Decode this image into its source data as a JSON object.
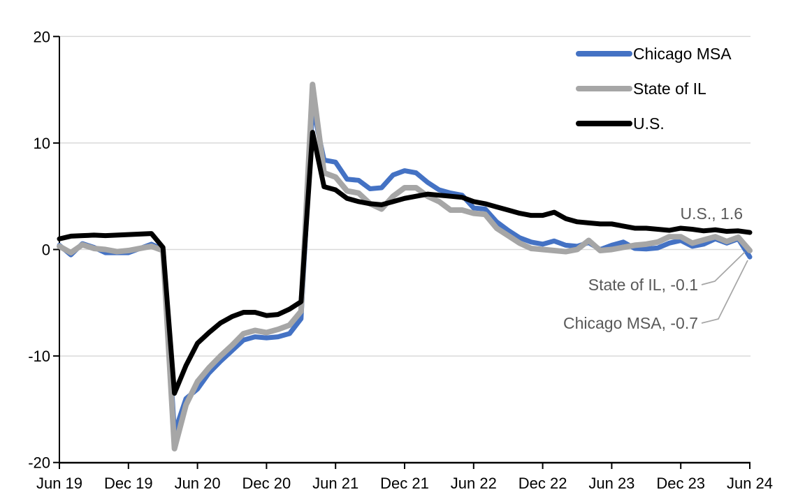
{
  "colors": {
    "chicago_msa": "#4472C4",
    "state_of_il": "#A6A6A6",
    "us": "#000000",
    "gridline": "#D9D9D9",
    "axis": "#000000",
    "annotation_text": "#595959",
    "leader_line": "#A6A6A6",
    "background": "#FFFFFF"
  },
  "legend": {
    "position": "top-right",
    "items": [
      {
        "label": "Chicago MSA",
        "color": "#4472C4"
      },
      {
        "label": "State of IL",
        "color": "#A6A6A6"
      },
      {
        "label": "U.S.",
        "color": "#000000"
      }
    ]
  },
  "annotations": {
    "us": {
      "text": "U.S., 1.6",
      "value": 1.6
    },
    "il": {
      "text": "State of IL, -0.1",
      "value": -0.1
    },
    "chicago": {
      "text": "Chicago MSA, -0.7",
      "value": -0.7
    }
  },
  "chart_data": {
    "type": "line",
    "title": "",
    "xlabel": "",
    "ylabel": "",
    "ylim": [
      -20,
      20
    ],
    "grid": true,
    "legend_position": "top-right",
    "y_ticks": [
      20,
      10,
      0,
      -10,
      -20
    ],
    "x_tick_labels": [
      "Jun 19",
      "Dec 19",
      "Jun 20",
      "Dec 20",
      "Jun 21",
      "Dec 21",
      "Jun 22",
      "Dec 22",
      "Jun 23",
      "Dec 23",
      "Jun 24"
    ],
    "x": [
      "Jun 19",
      "Jul 19",
      "Aug 19",
      "Sep 19",
      "Oct 19",
      "Nov 19",
      "Dec 19",
      "Jan 20",
      "Feb 20",
      "Mar 20",
      "Apr 20",
      "May 20",
      "Jun 20",
      "Jul 20",
      "Aug 20",
      "Sep 20",
      "Oct 20",
      "Nov 20",
      "Dec 20",
      "Jan 21",
      "Feb 21",
      "Mar 21",
      "Apr 21",
      "May 21",
      "Jun 21",
      "Jul 21",
      "Aug 21",
      "Sep 21",
      "Oct 21",
      "Nov 21",
      "Dec 21",
      "Jan 22",
      "Feb 22",
      "Mar 22",
      "Apr 22",
      "May 22",
      "Jun 22",
      "Jul 22",
      "Aug 22",
      "Sep 22",
      "Oct 22",
      "Nov 22",
      "Dec 22",
      "Jan 23",
      "Feb 23",
      "Mar 23",
      "Apr 23",
      "May 23",
      "Jun 23",
      "Jul 23",
      "Aug 23",
      "Sep 23",
      "Oct 23",
      "Nov 23",
      "Dec 23",
      "Jan 24",
      "Feb 24",
      "Mar 24",
      "Apr 24",
      "May 24",
      "Jun 24"
    ],
    "series": [
      {
        "name": "Chicago MSA",
        "color": "#4472C4",
        "end_value": -0.7,
        "values": [
          0.4,
          -0.5,
          0.55,
          0.2,
          -0.3,
          -0.3,
          -0.3,
          0.1,
          0.5,
          0.0,
          -17.2,
          -14.0,
          -13.1,
          -11.6,
          -10.5,
          -9.5,
          -8.5,
          -8.2,
          -8.3,
          -8.2,
          -7.9,
          -6.5,
          13.5,
          8.4,
          8.2,
          6.6,
          6.5,
          5.7,
          5.8,
          7.0,
          7.4,
          7.2,
          6.3,
          5.6,
          5.3,
          5.1,
          3.9,
          3.8,
          2.6,
          1.8,
          1.1,
          0.7,
          0.5,
          0.8,
          0.4,
          0.3,
          0.65,
          0.0,
          0.4,
          0.7,
          0.1,
          0.05,
          0.15,
          0.6,
          0.85,
          0.3,
          0.5,
          1.0,
          0.6,
          1.0,
          -0.7
        ]
      },
      {
        "name": "State of IL",
        "color": "#A6A6A6",
        "end_value": -0.1,
        "values": [
          0.3,
          -0.3,
          0.45,
          0.1,
          0.0,
          -0.2,
          -0.1,
          0.1,
          0.3,
          -0.1,
          -18.7,
          -14.6,
          -12.4,
          -11.1,
          -10.0,
          -9.0,
          -7.9,
          -7.6,
          -7.8,
          -7.5,
          -7.1,
          -5.8,
          15.5,
          7.2,
          6.8,
          5.5,
          5.3,
          4.3,
          3.8,
          5.0,
          5.8,
          5.8,
          5.0,
          4.5,
          3.7,
          3.7,
          3.4,
          3.3,
          2.0,
          1.3,
          0.6,
          0.1,
          0.0,
          -0.1,
          -0.2,
          0.0,
          0.85,
          -0.1,
          0.0,
          0.2,
          0.4,
          0.5,
          0.7,
          1.2,
          1.2,
          0.6,
          0.9,
          1.2,
          0.75,
          1.15,
          -0.1
        ]
      },
      {
        "name": "U.S.",
        "color": "#000000",
        "end_value": 1.6,
        "values": [
          1.0,
          1.25,
          1.3,
          1.35,
          1.3,
          1.35,
          1.4,
          1.45,
          1.5,
          0.2,
          -13.5,
          -10.9,
          -8.8,
          -7.8,
          -6.9,
          -6.3,
          -5.9,
          -5.9,
          -6.2,
          -6.1,
          -5.6,
          -4.9,
          11.0,
          5.9,
          5.6,
          4.8,
          4.5,
          4.3,
          4.2,
          4.5,
          4.8,
          5.0,
          5.2,
          5.1,
          5.0,
          4.9,
          4.5,
          4.3,
          4.0,
          3.7,
          3.4,
          3.2,
          3.2,
          3.5,
          2.9,
          2.6,
          2.5,
          2.4,
          2.4,
          2.2,
          2.0,
          2.0,
          1.9,
          1.8,
          2.0,
          1.9,
          1.75,
          1.85,
          1.7,
          1.75,
          1.6
        ]
      }
    ]
  }
}
